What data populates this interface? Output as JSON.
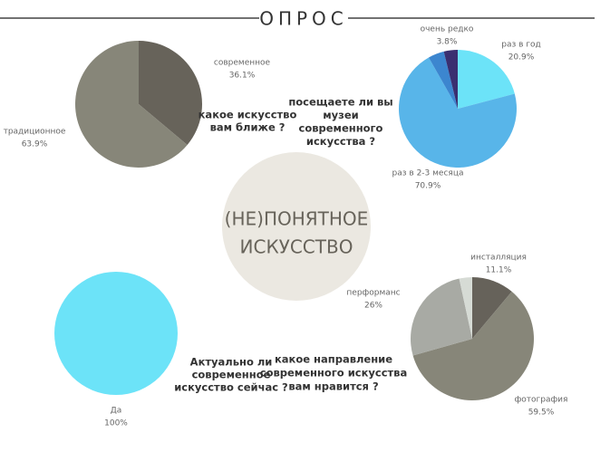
{
  "header": {
    "title": "ОПРОС"
  },
  "center": {
    "lines": [
      "(НЕ)ПОНЯТНОЕ",
      "ИСКУССТВО"
    ]
  },
  "chart_data": [
    {
      "type": "pie",
      "title": [
        "какое искусство",
        "вам ближе ?"
      ],
      "categories": [
        "современное",
        "традиционное"
      ],
      "values": [
        36.1,
        63.9
      ],
      "value_labels": [
        "36.1%",
        "63.9%"
      ],
      "colors": [
        "#67635a",
        "#878679"
      ]
    },
    {
      "type": "pie",
      "title": [
        "посещаете ли вы",
        "музеи",
        "современного",
        "искусства ?"
      ],
      "categories": [
        "раз в год",
        "раз в 2-3 месяца",
        null,
        "очень редко"
      ],
      "values": [
        20.9,
        70.9,
        4.4,
        3.8
      ],
      "value_labels": [
        "20.9%",
        "70.9%",
        null,
        "3.8%"
      ],
      "colors": [
        "#6ce3f8",
        "#58b5e9",
        "#3c86cf",
        "#3a2f70"
      ]
    },
    {
      "type": "pie",
      "title": [
        "Актуально ли",
        "современное",
        "искусство сейчас ?"
      ],
      "categories": [
        "Да"
      ],
      "values": [
        100
      ],
      "value_labels": [
        "100%"
      ],
      "colors": [
        "#6ce3f8"
      ]
    },
    {
      "type": "pie",
      "title": [
        "какое направление",
        "современного искусства",
        "вам нравится ?"
      ],
      "categories": [
        "инсталляция",
        "фотография",
        "перформанс",
        null
      ],
      "values": [
        11.1,
        59.5,
        26,
        3.4
      ],
      "value_labels": [
        "11.1%",
        "59.5%",
        "26%",
        null
      ],
      "colors": [
        "#66625a",
        "#878679",
        "#a8aaa4",
        "#d6dbd5"
      ]
    }
  ]
}
